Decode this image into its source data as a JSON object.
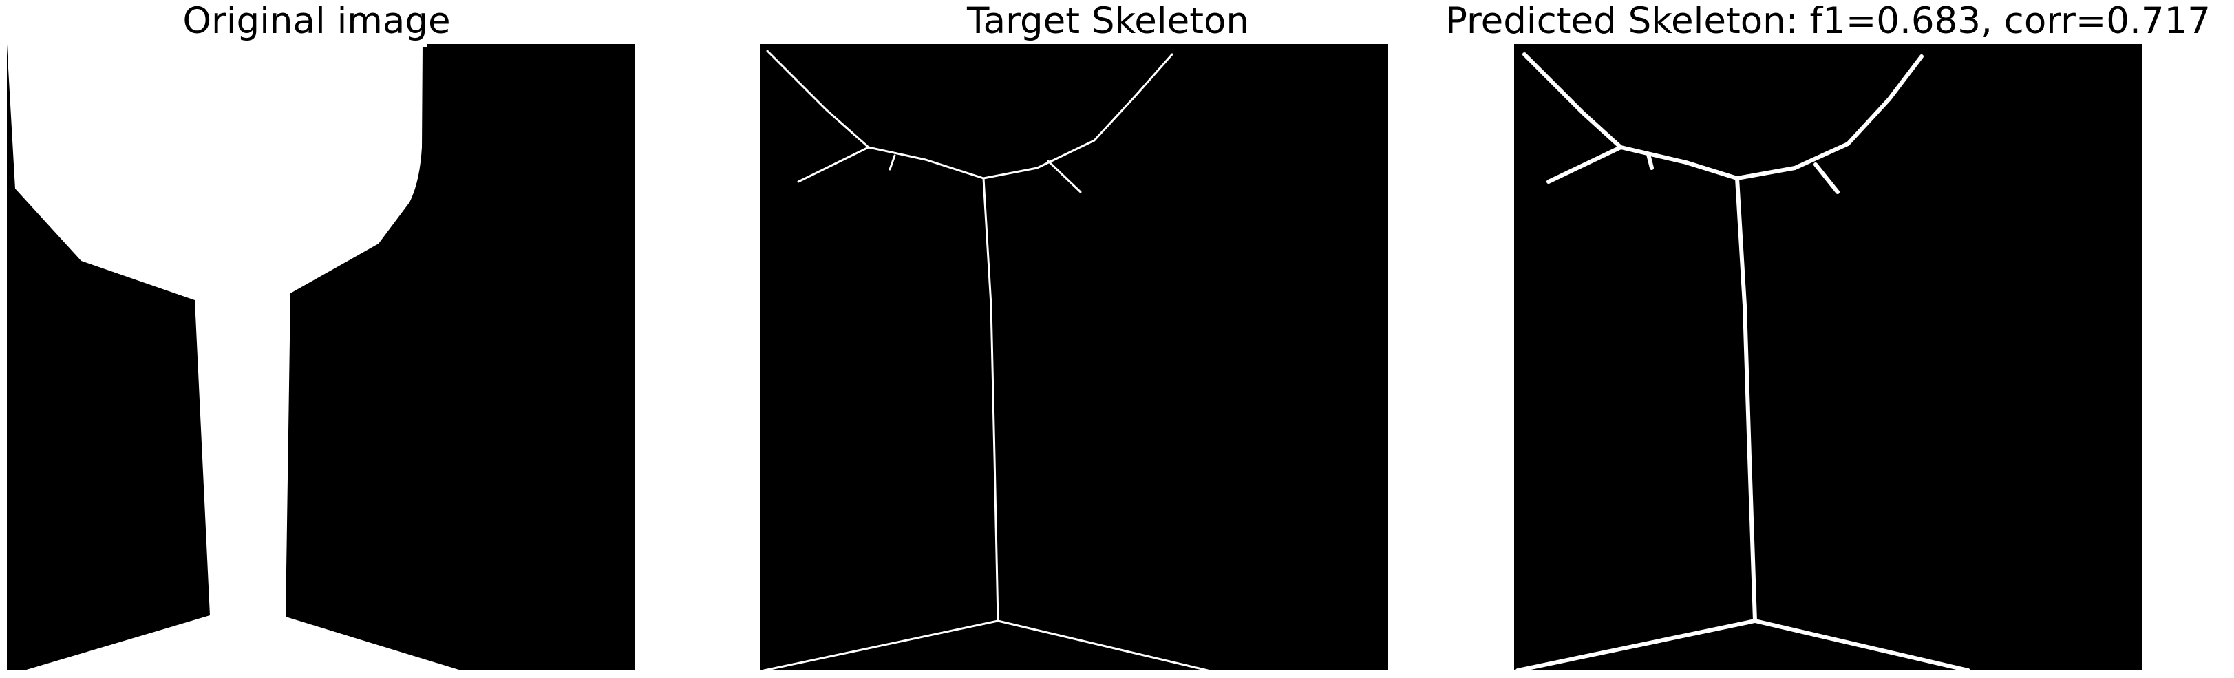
{
  "panels": [
    {
      "title": "Original image",
      "image": "binary-silhouette-glass-shape"
    },
    {
      "title": "Target Skeleton",
      "image": "target-skeleton-lines"
    },
    {
      "title": "Predicted Skeleton: f1=0.683, corr=0.717",
      "image": "predicted-skeleton-lines"
    }
  ],
  "colors": {
    "background": "#ffffff",
    "image_background": "#000000",
    "foreground": "#ffffff",
    "title_text": "#000000"
  }
}
